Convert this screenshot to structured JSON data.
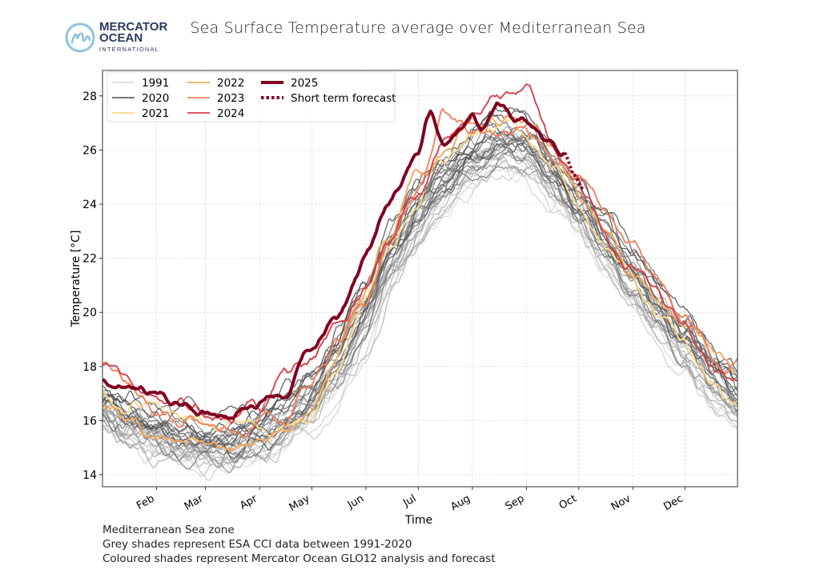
{
  "header": {
    "title": "Sea Surface Temperature average over Mediterranean Sea",
    "logo": {
      "line1": "MERCATOR",
      "line2": "OCEAN",
      "line3": "INTERNATIONAL",
      "color": "#2b3a5c",
      "mark_color": "#8fc3df"
    }
  },
  "footer": {
    "line1": "Mediterranean Sea zone",
    "line2": "Grey shades represent ESA CCI data between 1991-2020",
    "line3": "Coloured shades represent Mercator Ocean GLO12 analysis and forecast"
  },
  "chart_data": {
    "type": "line",
    "xlabel": "Time",
    "ylabel": "Temperature [°C]",
    "ylim": [
      13.5,
      29.0
    ],
    "yticks": [
      14,
      16,
      18,
      20,
      22,
      24,
      26,
      28
    ],
    "xticks": [
      "Feb",
      "Mar",
      "Apr",
      "May",
      "Jun",
      "Jul",
      "Aug",
      "Sep",
      "Oct",
      "Nov",
      "Dec"
    ],
    "xtick_days": [
      32,
      60,
      91,
      121,
      152,
      182,
      213,
      244,
      274,
      305,
      335
    ],
    "x_unit": "day of year",
    "xlim": [
      1,
      365
    ],
    "grid": true,
    "legend": {
      "placement": "top-left",
      "entries": [
        "1991",
        "2020",
        "2021",
        "2022",
        "2023",
        "2024",
        "2025",
        "Short term forecast"
      ]
    },
    "days": [
      1,
      15,
      32,
      46,
      60,
      74,
      91,
      105,
      121,
      135,
      152,
      166,
      182,
      196,
      213,
      227,
      244,
      258,
      274,
      288,
      305,
      319,
      335,
      349,
      365
    ],
    "grey_years": {
      "first": 1991,
      "last": 2020,
      "color_first": "#dcdcdc",
      "color_last": "#4a4a4a",
      "min": [
        15.6,
        15.1,
        14.7,
        14.4,
        14.2,
        14.2,
        14.5,
        15.0,
        15.8,
        16.9,
        18.6,
        20.6,
        22.4,
        23.6,
        24.6,
        25.1,
        24.9,
        23.9,
        22.8,
        21.6,
        20.2,
        19.0,
        17.7,
        16.7,
        15.7
      ],
      "mean": [
        16.6,
        16.1,
        15.6,
        15.3,
        15.1,
        15.1,
        15.4,
        15.9,
        16.8,
        18.0,
        20.0,
        22.0,
        23.7,
        24.8,
        25.7,
        26.1,
        25.9,
        25.0,
        23.9,
        22.8,
        21.5,
        20.3,
        18.9,
        17.9,
        16.8
      ],
      "max": [
        17.4,
        16.9,
        16.4,
        16.1,
        15.9,
        15.9,
        16.3,
        16.9,
        18.0,
        19.4,
        21.4,
        23.3,
        25.0,
        26.0,
        26.9,
        27.4,
        27.3,
        26.3,
        25.0,
        23.8,
        22.5,
        21.3,
        19.9,
        18.8,
        17.8
      ]
    },
    "series": [
      {
        "name": "2021",
        "color": "#f9d98c",
        "values": [
          17.2,
          16.7,
          16.3,
          16.0,
          15.8,
          15.7,
          15.8,
          16.0,
          16.6,
          18.0,
          20.5,
          22.8,
          24.8,
          25.8,
          26.8,
          27.3,
          26.8,
          25.6,
          24.0,
          22.6,
          21.2,
          20.0,
          18.8,
          17.7,
          16.8
        ]
      },
      {
        "name": "2022",
        "color": "#f5a95c",
        "values": [
          16.6,
          16.1,
          15.6,
          15.3,
          15.1,
          15.0,
          15.2,
          15.5,
          16.6,
          18.5,
          21.0,
          23.2,
          25.0,
          26.0,
          27.0,
          27.5,
          27.0,
          25.8,
          24.3,
          23.0,
          21.8,
          20.7,
          19.6,
          18.7,
          18.0
        ]
      },
      {
        "name": "2023",
        "color": "#f4805c",
        "values": [
          18.0,
          17.2,
          16.4,
          15.9,
          15.6,
          15.6,
          15.8,
          16.3,
          17.2,
          18.8,
          20.5,
          22.5,
          24.3,
          27.3,
          26.5,
          26.3,
          26.8,
          25.9,
          25.0,
          23.9,
          22.7,
          21.0,
          19.6,
          18.6,
          18.0
        ]
      },
      {
        "name": "2024",
        "color": "#d9404a",
        "values": [
          18.0,
          17.4,
          16.8,
          16.4,
          16.2,
          16.3,
          16.6,
          17.9,
          18.2,
          19.5,
          21.0,
          22.8,
          24.5,
          26.5,
          27.3,
          28.4,
          28.0,
          26.0,
          24.5,
          23.1,
          21.8,
          20.6,
          19.4,
          18.1,
          17.3
        ]
      },
      {
        "name": "2025",
        "color": "#800020",
        "days": [
          1,
          15,
          32,
          46,
          60,
          74,
          91,
          105,
          121,
          135,
          152,
          166,
          182,
          189,
          196,
          205,
          213,
          218,
          227,
          244,
          258,
          266
        ],
        "values": [
          17.5,
          17.2,
          16.85,
          16.6,
          16.3,
          16.4,
          16.75,
          17.05,
          18.7,
          19.7,
          21.9,
          24.3,
          25.9,
          27.25,
          26.2,
          26.6,
          27.1,
          26.4,
          27.5,
          27.1,
          26.4,
          25.9
        ]
      },
      {
        "name": "Short term forecast",
        "color": "#800020",
        "days": [
          266,
          271,
          277
        ],
        "values": [
          25.9,
          25.1,
          24.5
        ]
      }
    ]
  }
}
